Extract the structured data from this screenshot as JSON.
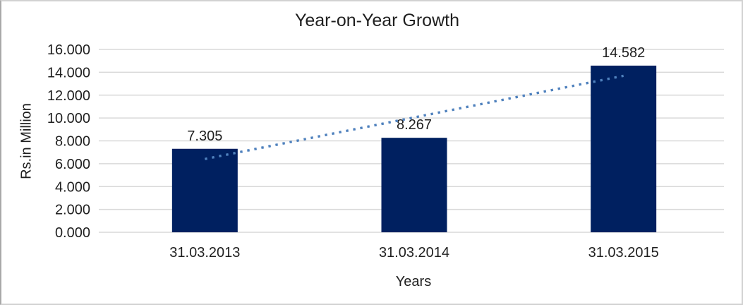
{
  "window": {
    "background": "#ffffff",
    "border_color": "#d2d2d2"
  },
  "chart_data": {
    "type": "bar",
    "title": "Year-on-Year Growth",
    "categories": [
      "31.03.2013",
      "31.03.2014",
      "31.03.2015"
    ],
    "series": [
      {
        "name": "Rs.in Million",
        "values": [
          7.305,
          8.267,
          14.582
        ]
      }
    ],
    "data_labels": [
      "7.305",
      "8.267",
      "14.582"
    ],
    "xlabel": "Years",
    "ylabel": "Rs.in Million",
    "ylim": [
      0,
      16
    ],
    "ytick_interval": 2,
    "ytick_labels": [
      "0.000",
      "2.000",
      "4.000",
      "6.000",
      "8.000",
      "10.000",
      "12.000",
      "14.000",
      "16.000"
    ],
    "grid": true,
    "legend": false,
    "bar_color": "#002060",
    "gridline_color": "#d9d9d9",
    "text_color": "#1f1f1f",
    "trendline": {
      "type": "linear",
      "style": "dotted",
      "color": "#4f81bd",
      "fitted_endpoints": [
        6.41,
        13.69
      ]
    }
  }
}
